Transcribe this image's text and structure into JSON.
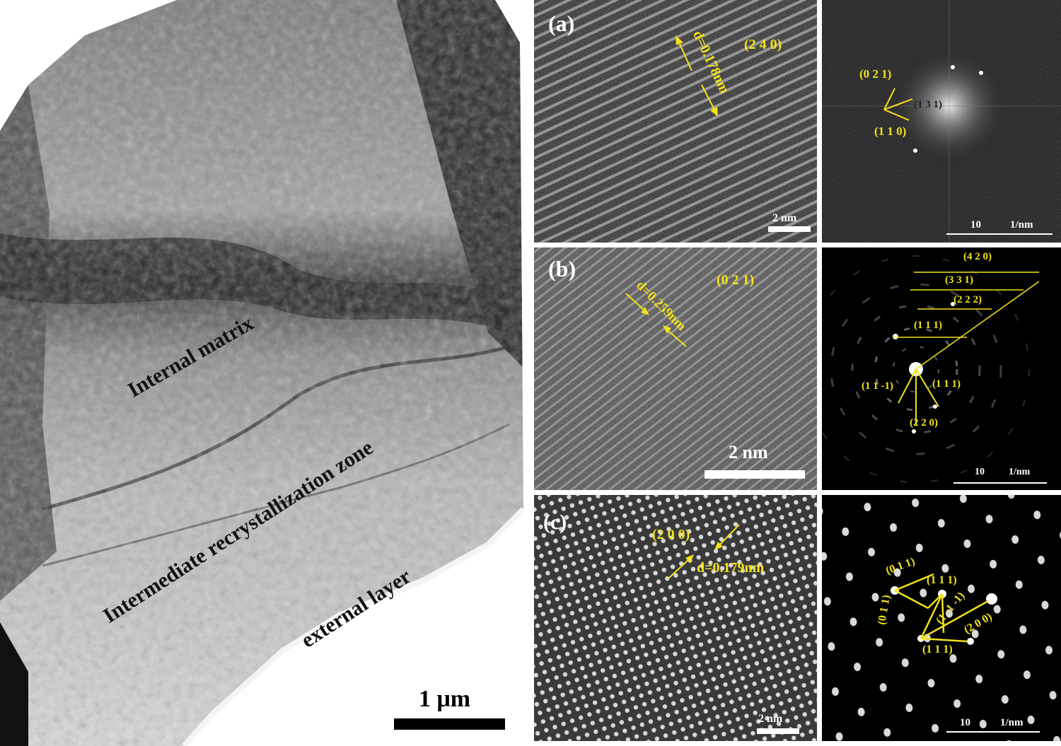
{
  "colors": {
    "annotation": "#f2e21a",
    "scalebar_light": "#ffffff",
    "scalebar_dark": "#000000"
  },
  "tem_overview": {
    "labels": {
      "internal_matrix": "Internal matrix",
      "recrystallization_zone": "Intermediate recrystallization zone",
      "external_layer": "external layer"
    },
    "scale_bar": "1 μm"
  },
  "panel_a": {
    "letter": "(a)",
    "hrtem": {
      "d_spacing": "d=0.178nm",
      "plane": "(2 4 0)",
      "scale_bar": "2 nm"
    },
    "fft": {
      "spots": [
        "(0 2 1)",
        "(1 3 1)",
        "(1 1 0)"
      ],
      "scale_bar_value": "10",
      "scale_bar_unit": "1/nm"
    }
  },
  "panel_b": {
    "letter": "(b)",
    "hrtem": {
      "d_spacing": "d=0.259nm",
      "plane": "(0 2 1)",
      "scale_bar": "2 nm"
    },
    "saed": {
      "rings": [
        "(4 2 0)",
        "(3 3 1)",
        "(2 2 2)",
        "(1 1 1)"
      ],
      "spots": [
        "(1 1 -1)",
        "(1 1 1)",
        "(2 2 0)"
      ],
      "scale_bar_value": "10",
      "scale_bar_unit": "1/nm"
    }
  },
  "panel_c": {
    "letter": "(c)",
    "hrtem": {
      "d_spacing": "d=0.179nm",
      "plane": "(2 0 0)",
      "scale_bar": "2 nm"
    },
    "saed": {
      "spots": [
        "(0 1 1)",
        "(1 1 1)",
        "(0 1 1)",
        "(1 -1 -1)",
        "(2 0 0)",
        "(1 1 1)"
      ],
      "scale_bar_value": "10",
      "scale_bar_unit": "1/nm"
    }
  }
}
